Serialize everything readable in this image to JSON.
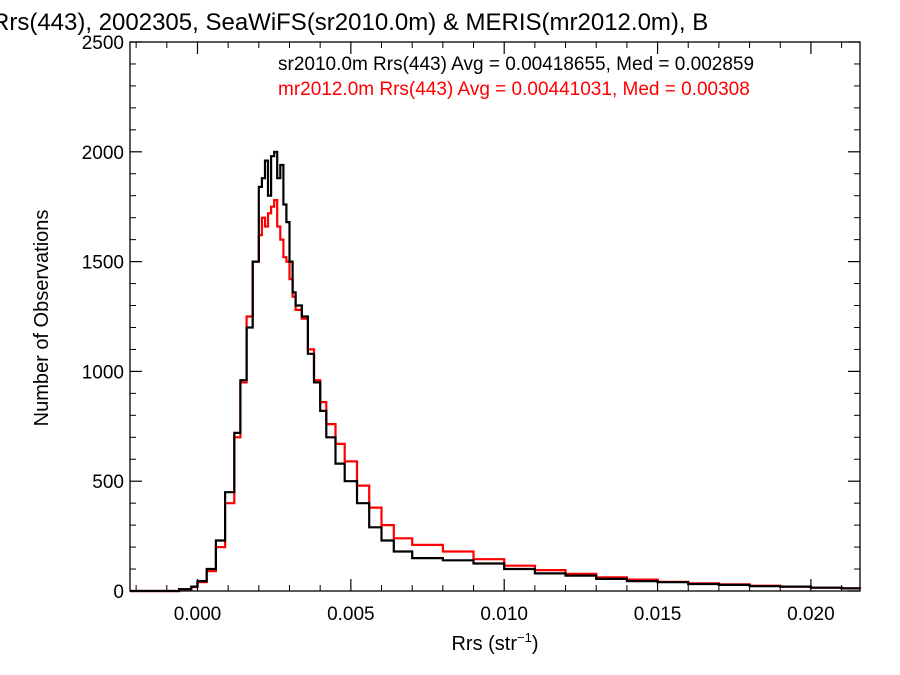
{
  "chart_data": {
    "type": "line",
    "title": "Rrs(443), 2002305, SeaWiFS(sr2010.0m) & MERIS(mr2012.0m), B",
    "xlabel": "Rrs (str",
    "xlabel_sup": "−1",
    "xlabel_close": ")",
    "ylabel": "Number of Observations",
    "xlim": [
      -0.0022,
      0.0216
    ],
    "ylim": [
      0,
      2500
    ],
    "x_ticks": [
      0.0,
      0.005,
      0.01,
      0.015,
      0.02
    ],
    "x_tick_labels": [
      "0.000",
      "0.005",
      "0.010",
      "0.015",
      "0.020"
    ],
    "y_ticks": [
      0,
      500,
      1000,
      1500,
      2000,
      2500
    ],
    "y_tick_labels": [
      "0",
      "500",
      "1000",
      "1500",
      "2000",
      "2500"
    ],
    "grid": false,
    "legend_position": "top-right",
    "series": [
      {
        "name": "sr2010.0m Rrs(443) Avg = 0.00418655, Med = 0.002859",
        "color": "#000000",
        "points": [
          [
            -0.0022,
            0
          ],
          [
            -0.001,
            0
          ],
          [
            -0.0006,
            8
          ],
          [
            -0.0002,
            20
          ],
          [
            0.0,
            45
          ],
          [
            0.0003,
            100
          ],
          [
            0.0006,
            230
          ],
          [
            0.0009,
            450
          ],
          [
            0.0012,
            720
          ],
          [
            0.0014,
            960
          ],
          [
            0.0016,
            1200
          ],
          [
            0.0018,
            1500
          ],
          [
            0.002,
            1840
          ],
          [
            0.0021,
            1880
          ],
          [
            0.0022,
            1960
          ],
          [
            0.0023,
            1800
          ],
          [
            0.0024,
            1980
          ],
          [
            0.0025,
            2000
          ],
          [
            0.0026,
            1880
          ],
          [
            0.0027,
            1940
          ],
          [
            0.0028,
            1760
          ],
          [
            0.0029,
            1680
          ],
          [
            0.003,
            1500
          ],
          [
            0.0031,
            1360
          ],
          [
            0.0032,
            1300
          ],
          [
            0.0034,
            1250
          ],
          [
            0.0036,
            1080
          ],
          [
            0.0038,
            950
          ],
          [
            0.004,
            820
          ],
          [
            0.0042,
            700
          ],
          [
            0.0045,
            580
          ],
          [
            0.0048,
            500
          ],
          [
            0.0052,
            400
          ],
          [
            0.0056,
            290
          ],
          [
            0.006,
            230
          ],
          [
            0.0064,
            180
          ],
          [
            0.007,
            150
          ],
          [
            0.008,
            140
          ],
          [
            0.009,
            125
          ],
          [
            0.01,
            100
          ],
          [
            0.011,
            80
          ],
          [
            0.012,
            70
          ],
          [
            0.013,
            55
          ],
          [
            0.014,
            45
          ],
          [
            0.015,
            40
          ],
          [
            0.016,
            32
          ],
          [
            0.017,
            28
          ],
          [
            0.018,
            22
          ],
          [
            0.019,
            20
          ],
          [
            0.02,
            15
          ],
          [
            0.021,
            12
          ],
          [
            0.0216,
            10
          ]
        ]
      },
      {
        "name": "mr2012.0m Rrs(443) Avg = 0.00441031, Med = 0.00308",
        "color": "#ff0000",
        "points": [
          [
            -0.0022,
            0
          ],
          [
            -0.001,
            0
          ],
          [
            -0.0006,
            8
          ],
          [
            -0.0002,
            18
          ],
          [
            0.0,
            40
          ],
          [
            0.0003,
            90
          ],
          [
            0.0006,
            200
          ],
          [
            0.0009,
            400
          ],
          [
            0.0012,
            700
          ],
          [
            0.0014,
            950
          ],
          [
            0.0016,
            1250
          ],
          [
            0.0018,
            1500
          ],
          [
            0.002,
            1620
          ],
          [
            0.0021,
            1700
          ],
          [
            0.0022,
            1660
          ],
          [
            0.0023,
            1720
          ],
          [
            0.0024,
            1750
          ],
          [
            0.0025,
            1780
          ],
          [
            0.0026,
            1660
          ],
          [
            0.0027,
            1600
          ],
          [
            0.0028,
            1520
          ],
          [
            0.0029,
            1500
          ],
          [
            0.003,
            1420
          ],
          [
            0.0031,
            1340
          ],
          [
            0.0032,
            1280
          ],
          [
            0.0034,
            1240
          ],
          [
            0.0036,
            1100
          ],
          [
            0.0038,
            960
          ],
          [
            0.004,
            860
          ],
          [
            0.0042,
            760
          ],
          [
            0.0045,
            670
          ],
          [
            0.0048,
            590
          ],
          [
            0.0052,
            480
          ],
          [
            0.0056,
            380
          ],
          [
            0.006,
            300
          ],
          [
            0.0064,
            240
          ],
          [
            0.007,
            210
          ],
          [
            0.008,
            180
          ],
          [
            0.009,
            145
          ],
          [
            0.01,
            115
          ],
          [
            0.011,
            95
          ],
          [
            0.012,
            78
          ],
          [
            0.013,
            62
          ],
          [
            0.014,
            52
          ],
          [
            0.015,
            42
          ],
          [
            0.016,
            35
          ],
          [
            0.017,
            30
          ],
          [
            0.018,
            24
          ],
          [
            0.019,
            20
          ],
          [
            0.02,
            15
          ],
          [
            0.021,
            12
          ],
          [
            0.0216,
            10
          ]
        ]
      }
    ]
  }
}
